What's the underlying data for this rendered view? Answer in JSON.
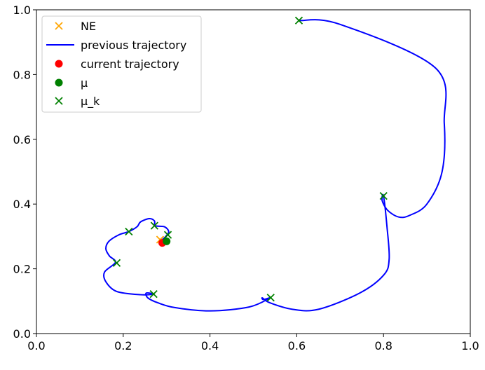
{
  "chart_data": {
    "type": "line",
    "title": "",
    "xlabel": "",
    "ylabel": "",
    "xlim": [
      0.0,
      1.0
    ],
    "ylim": [
      0.0,
      1.0
    ],
    "xticks": [
      "0.0",
      "0.2",
      "0.4",
      "0.6",
      "0.8",
      "1.0"
    ],
    "yticks": [
      "0.0",
      "0.2",
      "0.4",
      "0.6",
      "0.8",
      "1.0"
    ],
    "grid": false,
    "legend_position": "top-left",
    "legend": [
      {
        "label": "NE",
        "marker": "x",
        "color": "#ffa500"
      },
      {
        "label": "previous trajectory",
        "marker": "line",
        "color": "#0000ff"
      },
      {
        "label": "current trajectory",
        "marker": "circle",
        "color": "#ff0000"
      },
      {
        "label": "μ",
        "marker": "circle",
        "color": "#008000"
      },
      {
        "label": "μ_k",
        "marker": "x",
        "color": "#008000"
      }
    ],
    "series": [
      {
        "name": "previous trajectory",
        "kind": "line",
        "color": "#0000ff",
        "x": [
          0.605,
          0.7,
          0.92,
          0.94,
          0.935,
          0.9,
          0.86,
          0.835,
          0.81,
          0.797,
          0.8,
          0.808,
          0.813,
          0.8,
          0.745,
          0.65,
          0.59,
          0.538,
          0.521,
          0.523,
          0.538,
          0.49,
          0.4,
          0.32,
          0.28,
          0.257,
          0.253,
          0.27,
          0.24,
          0.185,
          0.16,
          0.157,
          0.182,
          0.168,
          0.16,
          0.167,
          0.19,
          0.213,
          0.232,
          0.24,
          0.26,
          0.272,
          0.274,
          0.295,
          0.305,
          0.298,
          0.29
        ],
        "y": [
          0.967,
          0.955,
          0.82,
          0.65,
          0.5,
          0.4,
          0.365,
          0.36,
          0.38,
          0.41,
          0.425,
          0.33,
          0.23,
          0.18,
          0.125,
          0.075,
          0.075,
          0.095,
          0.11,
          0.105,
          0.11,
          0.082,
          0.07,
          0.08,
          0.095,
          0.11,
          0.125,
          0.122,
          0.12,
          0.13,
          0.16,
          0.19,
          0.22,
          0.24,
          0.262,
          0.285,
          0.305,
          0.315,
          0.33,
          0.345,
          0.355,
          0.348,
          0.333,
          0.33,
          0.315,
          0.3,
          0.29
        ]
      },
      {
        "name": "μ_k",
        "kind": "x-marker",
        "color": "#008000",
        "x": [
          0.605,
          0.8,
          0.54,
          0.27,
          0.185,
          0.213,
          0.272,
          0.303
        ],
        "y": [
          0.967,
          0.425,
          0.111,
          0.122,
          0.218,
          0.315,
          0.333,
          0.305
        ]
      },
      {
        "name": "NE",
        "kind": "x-marker",
        "color": "#ffa500",
        "x": [
          0.285
        ],
        "y": [
          0.29
        ]
      },
      {
        "name": "current trajectory",
        "kind": "circle",
        "color": "#ff0000",
        "x": [
          0.29
        ],
        "y": [
          0.28
        ]
      },
      {
        "name": "μ",
        "kind": "circle",
        "color": "#008000",
        "x": [
          0.3
        ],
        "y": [
          0.285
        ]
      }
    ]
  }
}
